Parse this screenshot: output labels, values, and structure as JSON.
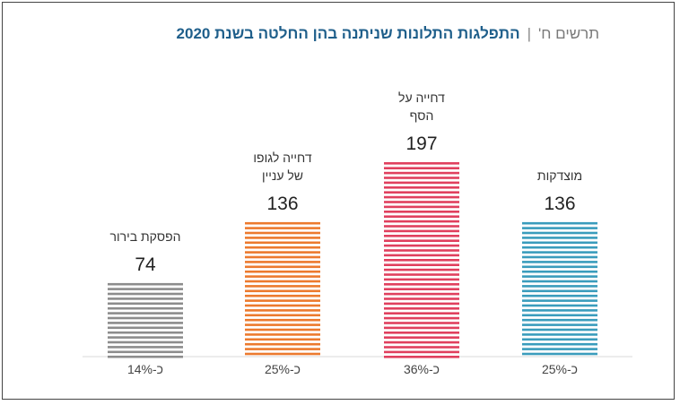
{
  "title": {
    "figure_label": "תרשים ח'",
    "separator": "|",
    "main": "התפלגות התלונות שניתנה בהן החלטה בשנת 2020"
  },
  "chart_data": {
    "type": "bar",
    "title": "התפלגות התלונות שניתנה בהן החלטה בשנת 2020",
    "categories": [
      [
        "הפסקת בירור"
      ],
      [
        "דחייה לגופו",
        "של עניין"
      ],
      [
        "דחייה על",
        "הסף"
      ],
      [
        "מוצדקות"
      ]
    ],
    "values": [
      74,
      136,
      197,
      136
    ],
    "percent_labels": [
      "כ-14%",
      "כ-25%",
      "כ-36%",
      "כ-25%"
    ],
    "colors": [
      "#8c8c8c",
      "#ec7a2e",
      "#e0405e",
      "#3a9cbc"
    ],
    "bar_style": "horizontal stripes",
    "ylim": [
      0,
      200
    ],
    "grid": false,
    "legend": "none"
  }
}
